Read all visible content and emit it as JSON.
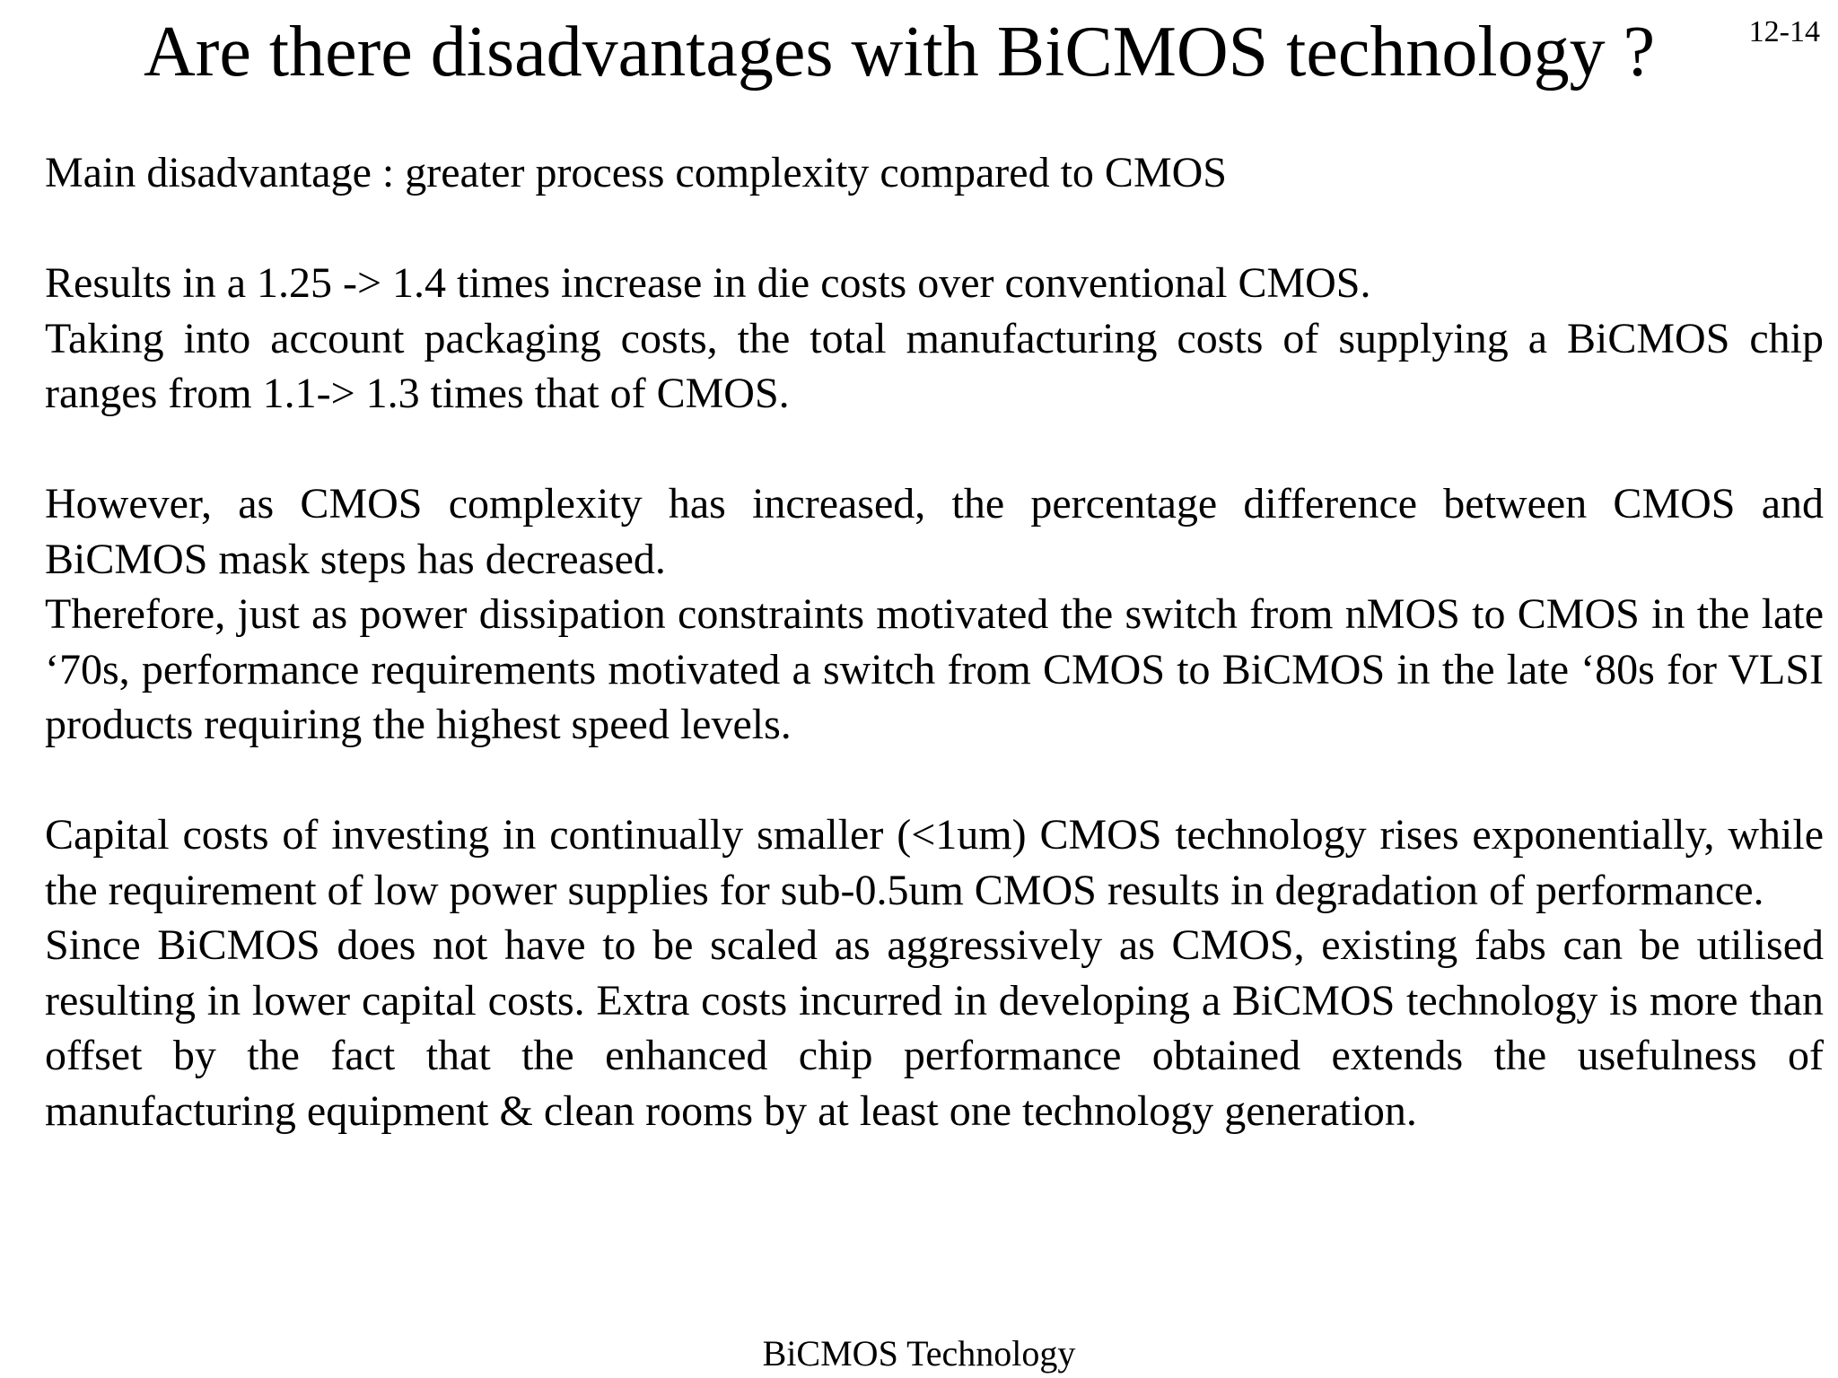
{
  "slide": {
    "title": "Are there disadvantages with BiCMOS technology  ?",
    "number": "12-14",
    "footer": "BiCMOS Technology"
  },
  "content": {
    "p1": "Main disadvantage : greater process complexity compared to CMOS",
    "p2": "Results in a 1.25 -> 1.4 times increase in die costs over conventional CMOS.",
    "p3": "Taking into account packaging costs, the total manufacturing costs of supplying a BiCMOS chip ranges from 1.1-> 1.3 times that of CMOS.",
    "p4": "However, as CMOS complexity has increased, the percentage difference between CMOS and BiCMOS mask steps has decreased.",
    "p5": "Therefore, just as power dissipation constraints motivated the switch from nMOS to CMOS in the late ‘70s, performance requirements motivated a switch from CMOS to BiCMOS in the late ‘80s for VLSI products requiring the highest speed levels.",
    "p6": "Capital costs of investing in continually smaller (<1um) CMOS technology rises exponentially, while the requirement of low power supplies for sub-0.5um CMOS results in degradation of performance.",
    "p7": "Since BiCMOS does not have to be scaled as aggressively as CMOS, existing fabs can be utilised resulting in lower capital costs. Extra costs incurred in developing a BiCMOS technology is more than offset by the fact that the enhanced chip performance obtained extends the usefulness of manufacturing equipment & clean rooms by at least one technology generation."
  }
}
